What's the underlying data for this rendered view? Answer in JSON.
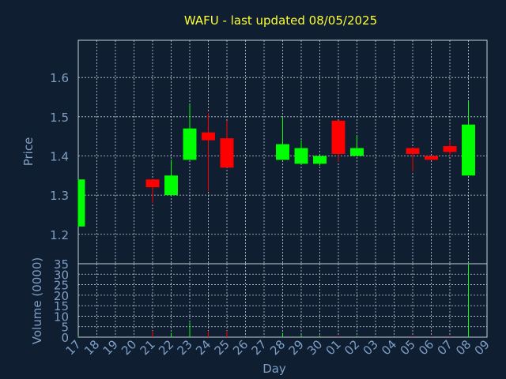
{
  "chart_data": {
    "type": "candlestick",
    "title": "WAFU - last updated 08/05/2025",
    "ylabel": "Price",
    "volume_ylabel": "Volume (0000)",
    "xlabel": "Day",
    "ylim": [
      1.125,
      1.695
    ],
    "volume_ylim": [
      0,
      35
    ],
    "yticks": [
      "1.2",
      "1.3",
      "1.4",
      "1.5",
      "1.6"
    ],
    "volume_yticks": [
      "0",
      "5",
      "10",
      "15",
      "20",
      "25",
      "30",
      "35"
    ],
    "x": [
      "17",
      "18",
      "19",
      "20",
      "21",
      "22",
      "23",
      "24",
      "25",
      "26",
      "27",
      "28",
      "29",
      "30",
      "01",
      "02",
      "03",
      "04",
      "05",
      "06",
      "07",
      "08",
      "09"
    ],
    "up_color": "#00ff00",
    "down_color": "#ff0000",
    "candles": [
      {
        "day": "17",
        "open": 1.22,
        "high": 1.34,
        "low": 1.22,
        "close": 1.34,
        "volume": 0.6
      },
      {
        "day": "21",
        "open": 1.34,
        "high": 1.34,
        "low": 1.28,
        "close": 1.32,
        "volume": 3
      },
      {
        "day": "22",
        "open": 1.3,
        "high": 1.39,
        "low": 1.3,
        "close": 1.35,
        "volume": 2
      },
      {
        "day": "23",
        "open": 1.39,
        "high": 1.53,
        "low": 1.39,
        "close": 1.47,
        "volume": 7
      },
      {
        "day": "24",
        "open": 1.46,
        "high": 1.51,
        "low": 1.31,
        "close": 1.44,
        "volume": 3
      },
      {
        "day": "25",
        "open": 1.445,
        "high": 1.49,
        "low": 1.37,
        "close": 1.37,
        "volume": 3
      },
      {
        "day": "28",
        "open": 1.39,
        "high": 1.5,
        "low": 1.39,
        "close": 1.43,
        "volume": 2
      },
      {
        "day": "29",
        "open": 1.38,
        "high": 1.44,
        "low": 1.38,
        "close": 1.42,
        "volume": 1
      },
      {
        "day": "30",
        "open": 1.38,
        "high": 1.4,
        "low": 1.375,
        "close": 1.4,
        "volume": 0.8
      },
      {
        "day": "01",
        "open": 1.49,
        "high": 1.49,
        "low": 1.385,
        "close": 1.405,
        "volume": 0.6
      },
      {
        "day": "02",
        "open": 1.4,
        "high": 1.45,
        "low": 1.4,
        "close": 1.42,
        "volume": 0.6
      },
      {
        "day": "05",
        "open": 1.42,
        "high": 1.42,
        "low": 1.36,
        "close": 1.405,
        "volume": 0.6
      },
      {
        "day": "06",
        "open": 1.4,
        "high": 1.4,
        "low": 1.39,
        "close": 1.39,
        "volume": 0.4
      },
      {
        "day": "07",
        "open": 1.425,
        "high": 1.44,
        "low": 1.4,
        "close": 1.41,
        "volume": 0.6
      },
      {
        "day": "08",
        "open": 1.35,
        "high": 1.54,
        "low": 1.35,
        "close": 1.48,
        "volume": 35
      }
    ]
  }
}
